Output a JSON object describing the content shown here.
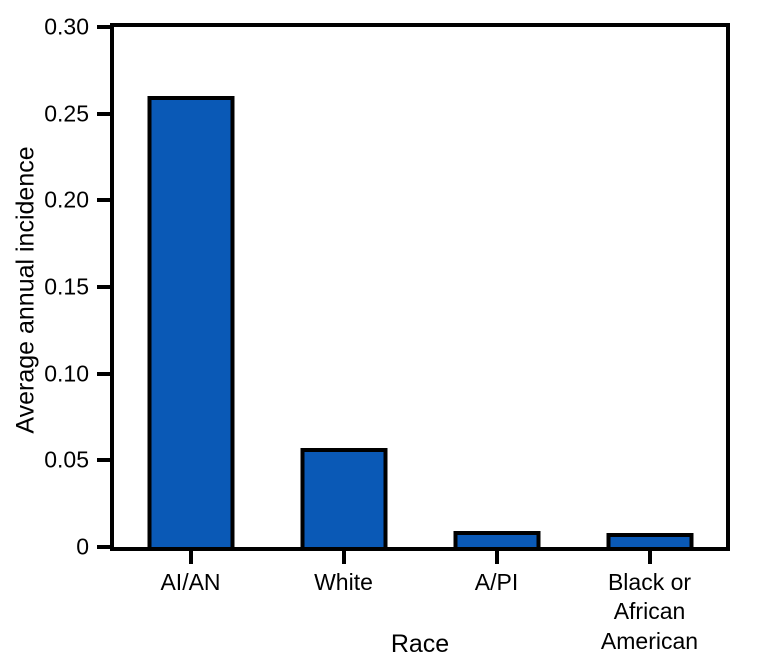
{
  "chart_data": {
    "type": "bar",
    "xlabel": "Race",
    "ylabel": "Average annual incidence",
    "categories": [
      "AI/AN",
      "White",
      "A/PI",
      "Black or\nAfrican American"
    ],
    "values": [
      0.26,
      0.057,
      0.009,
      0.008
    ],
    "ylim": [
      0,
      0.3
    ],
    "yticks": [
      {
        "value": 0,
        "label": "0"
      },
      {
        "value": 0.05,
        "label": "0.05"
      },
      {
        "value": 0.1,
        "label": "0.10"
      },
      {
        "value": 0.15,
        "label": "0.15"
      },
      {
        "value": 0.2,
        "label": "0.20"
      },
      {
        "value": 0.25,
        "label": "0.25"
      },
      {
        "value": 0.3,
        "label": "0.30"
      }
    ],
    "grid": false,
    "legend": null,
    "colors": {
      "bar_fill": "#0a59b6",
      "bar_border": "#000000",
      "axis": "#000000",
      "background": "#ffffff"
    }
  }
}
